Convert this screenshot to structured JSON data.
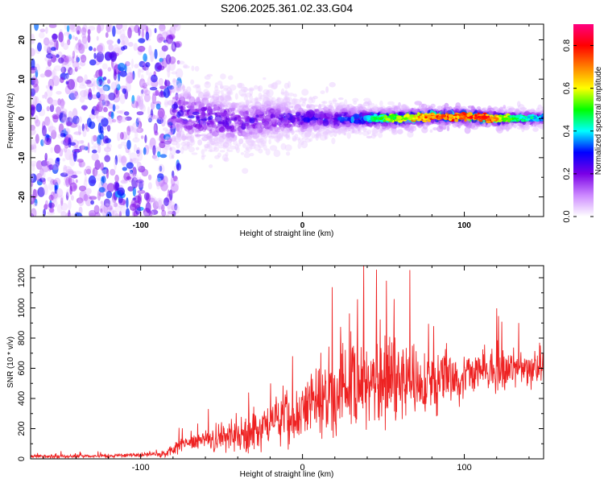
{
  "title": "S206.2025.361.02.33.G04",
  "chart_data": [
    {
      "type": "heatmap",
      "xlabel": "Height of straight line (km)",
      "ylabel": "Frequency (Hz)",
      "xlim": [
        -168,
        149
      ],
      "ylim": [
        -25,
        24
      ],
      "xticks": [
        -100,
        0,
        100
      ],
      "yticks": [
        -20,
        -10,
        0,
        10,
        20
      ],
      "xtick_labels": [
        "-100",
        "0",
        "100"
      ],
      "ytick_labels": [
        "-20",
        "-10",
        "0",
        "10",
        "20"
      ],
      "colorbar": {
        "label": "Normalized spectral amplitude",
        "range": [
          0,
          0.9
        ],
        "ticks": [
          0.0,
          0.2,
          0.4,
          0.6,
          0.8
        ],
        "tick_labels": [
          "0.0",
          "0.2",
          "0.4",
          "0.6",
          "0.8"
        ],
        "colormap": [
          "#ffffff",
          "#cc88ff",
          "#7a00e6",
          "#0000ff",
          "#00ffff",
          "#00ff00",
          "#ffff00",
          "#ff8000",
          "#ff0000",
          "#ff0080"
        ]
      },
      "features": {
        "noise_region_x": [
          -168,
          -82
        ],
        "tone_x": [
          -80,
          149
        ],
        "tone_freq": [
          [
            -95,
            6
          ],
          [
            -85,
            4
          ],
          [
            -75,
            1
          ],
          [
            -60,
            0
          ],
          [
            -40,
            -1
          ],
          [
            -20,
            0
          ],
          [
            0,
            0
          ],
          [
            20,
            0
          ],
          [
            40,
            0
          ],
          [
            60,
            0
          ],
          [
            80,
            0.5
          ],
          [
            100,
            0.5
          ],
          [
            120,
            0
          ],
          [
            149,
            0
          ]
        ],
        "tone_amp": [
          [
            -80,
            0.3
          ],
          [
            -60,
            0.3
          ],
          [
            -40,
            0.25
          ],
          [
            -20,
            0.28
          ],
          [
            0,
            0.3
          ],
          [
            20,
            0.35
          ],
          [
            40,
            0.45
          ],
          [
            60,
            0.65
          ],
          [
            80,
            0.8
          ],
          [
            100,
            0.85
          ],
          [
            115,
            0.85
          ],
          [
            130,
            0.55
          ],
          [
            149,
            0.4
          ]
        ],
        "tone_width_hz": [
          [
            -80,
            12
          ],
          [
            -40,
            10
          ],
          [
            0,
            6
          ],
          [
            40,
            4
          ],
          [
            80,
            2.5
          ],
          [
            149,
            2.5
          ]
        ]
      },
      "grid": false
    },
    {
      "type": "line",
      "xlabel": "Height of straight line (km)",
      "ylabel": "SNR (10 * v/v)",
      "xlim": [
        -168,
        149
      ],
      "ylim": [
        0,
        1280
      ],
      "xticks": [
        -100,
        0,
        100
      ],
      "yticks": [
        0,
        200,
        400,
        600,
        800,
        1000,
        1200
      ],
      "xtick_labels": [
        "-100",
        "0",
        "100"
      ],
      "ytick_labels": [
        "0",
        "200",
        "400",
        "600",
        "800",
        "1000",
        "1200"
      ],
      "color": "#ee2222",
      "envelope": {
        "x": [
          -168,
          -130,
          -100,
          -85,
          -80,
          -70,
          -55,
          -40,
          -20,
          0,
          15,
          30,
          50,
          60,
          80,
          100,
          120,
          140,
          149
        ],
        "mean": [
          15,
          18,
          25,
          30,
          60,
          110,
          130,
          160,
          230,
          330,
          420,
          480,
          520,
          540,
          520,
          560,
          580,
          600,
          620
        ],
        "amp": [
          15,
          15,
          20,
          30,
          60,
          80,
          100,
          140,
          200,
          280,
          380,
          420,
          400,
          380,
          280,
          220,
          180,
          170,
          160
        ]
      },
      "grid": false
    }
  ]
}
